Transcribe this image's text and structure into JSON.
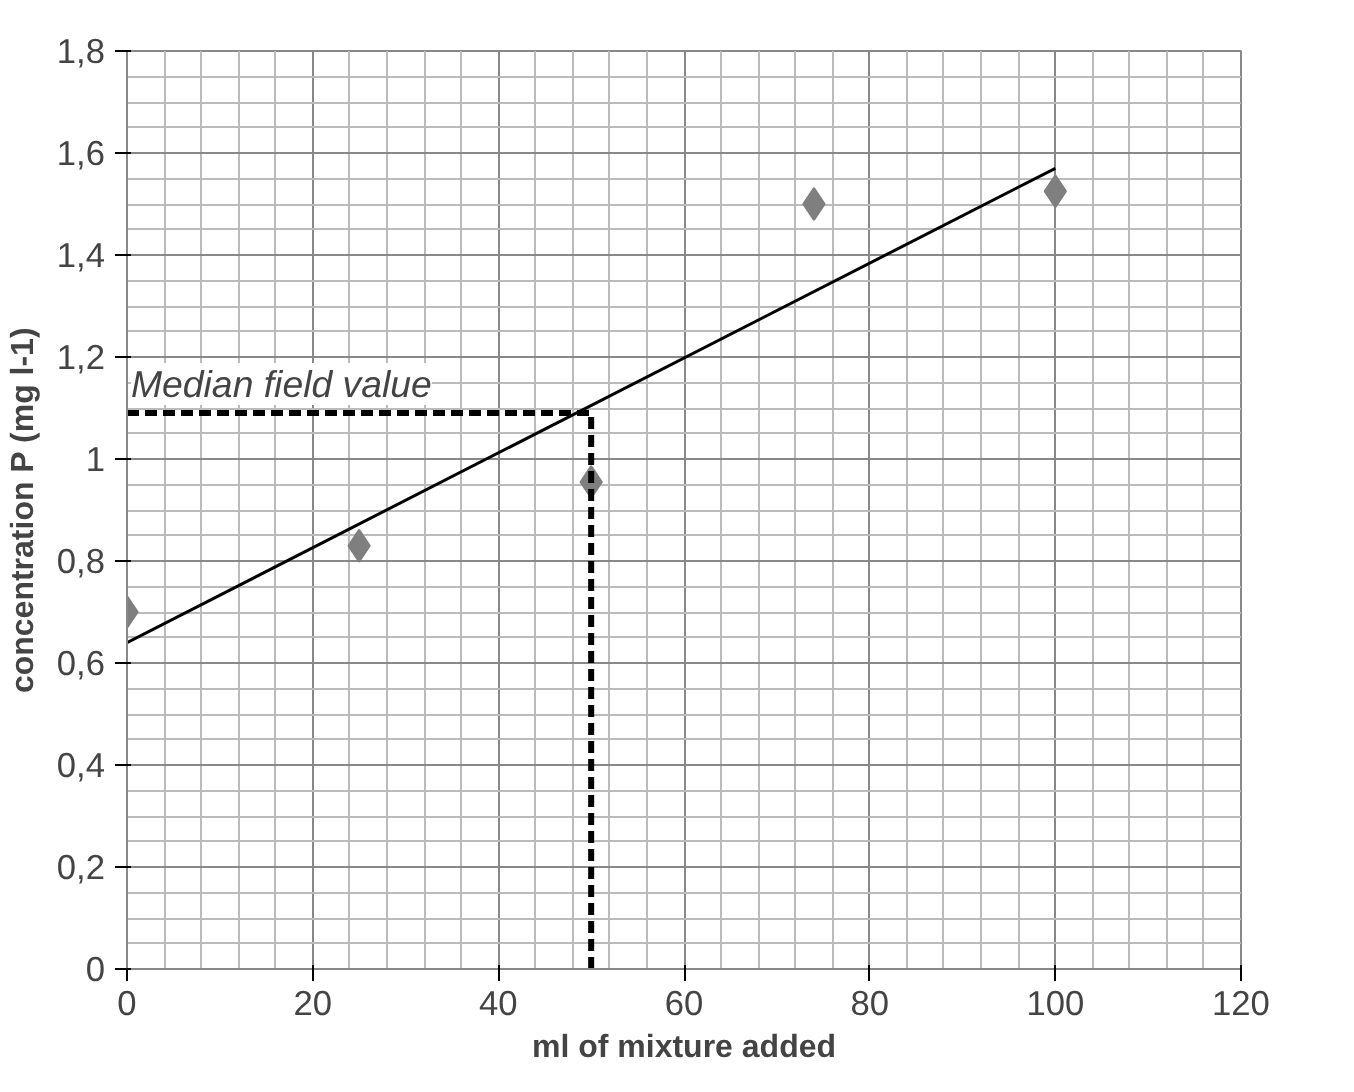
{
  "chart_data": {
    "type": "scatter",
    "xlabel": "ml of mixture added",
    "ylabel": "concentration P (mg l-1)",
    "xlim": [
      0,
      120
    ],
    "ylim": [
      0,
      1.8
    ],
    "xticks": [
      0,
      20,
      40,
      60,
      80,
      100,
      120
    ],
    "yticks": [
      0,
      {
        "value": 0.2,
        "label": "0,2"
      },
      {
        "value": 0.4,
        "label": "0,4"
      },
      {
        "value": 0.6,
        "label": "0,6"
      },
      {
        "value": 0.8,
        "label": "0,8"
      },
      1,
      {
        "value": 1.2,
        "label": "1,2"
      },
      {
        "value": 1.4,
        "label": "1,4"
      },
      {
        "value": 1.6,
        "label": "1,6"
      },
      {
        "value": 1.8,
        "label": "1,8"
      }
    ],
    "grid": true,
    "marker": "diamond",
    "series": [
      {
        "color": "#7f7f7f",
        "x": [
          0,
          25,
          50,
          74,
          100
        ],
        "values": [
          0.7,
          0.83,
          0.955,
          1.5,
          1.525
        ]
      },
      {
        "type": "line",
        "color": "#000000",
        "marker": "none",
        "x": [
          0,
          100
        ],
        "values": [
          0.64,
          1.57
        ]
      },
      {
        "type": "line",
        "color": "#000000",
        "marker": "none",
        "line_style": "dashed",
        "x": [
          0,
          50,
          50
        ],
        "values": [
          1.09,
          1.09,
          0
        ]
      }
    ],
    "annotations": [
      {
        "text": "Median field value",
        "x": 0,
        "y": 1.09
      }
    ]
  }
}
